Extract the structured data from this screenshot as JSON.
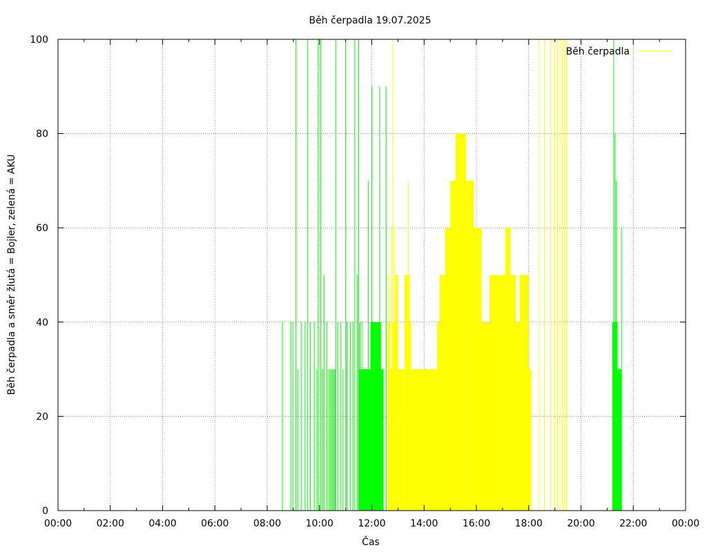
{
  "chart_data": {
    "type": "bar",
    "title": "Běh čerpadla 19.07.2025",
    "xlabel": "Čas",
    "ylabel": "Běh čerpadla a směr žlutá = Bojler, zelená = AKU",
    "x_unit": "hours",
    "xlim": [
      0,
      24
    ],
    "ylim": [
      0,
      100
    ],
    "x_ticks": [
      "00:00",
      "02:00",
      "04:00",
      "06:00",
      "08:00",
      "10:00",
      "12:00",
      "14:00",
      "16:00",
      "18:00",
      "20:00",
      "22:00",
      "00:00"
    ],
    "y_ticks": [
      "0",
      "20",
      "40",
      "60",
      "80",
      "100"
    ],
    "grid": true,
    "legend_position": "top-right",
    "legend": [
      {
        "label": "Běh čerpadla",
        "color": "#ffff00"
      }
    ],
    "colors": {
      "boiler": "#ffff00",
      "aku": "#00ff00"
    },
    "series": [
      {
        "direction": "AKU",
        "color": "#00ff00",
        "spikes": [
          [
            8.58,
            40
          ],
          [
            8.9,
            40
          ],
          [
            8.98,
            40
          ],
          [
            9.1,
            100
          ],
          [
            9.18,
            30
          ],
          [
            9.3,
            40
          ],
          [
            9.45,
            40
          ],
          [
            9.55,
            100
          ],
          [
            9.65,
            40
          ],
          [
            9.8,
            40
          ],
          [
            9.9,
            30
          ],
          [
            9.95,
            100
          ],
          [
            10.05,
            100
          ],
          [
            10.12,
            30
          ],
          [
            10.18,
            50
          ],
          [
            10.28,
            40
          ],
          [
            10.35,
            30
          ],
          [
            10.4,
            30
          ],
          [
            10.45,
            30
          ],
          [
            10.5,
            30
          ],
          [
            10.55,
            30
          ],
          [
            10.6,
            30
          ],
          [
            10.62,
            100
          ],
          [
            10.7,
            40
          ],
          [
            10.82,
            40
          ],
          [
            10.9,
            30
          ],
          [
            11.0,
            100
          ],
          [
            11.05,
            40
          ],
          [
            11.18,
            40
          ],
          [
            11.28,
            40
          ],
          [
            11.35,
            100
          ],
          [
            11.45,
            50
          ],
          [
            11.5,
            100
          ],
          [
            11.55,
            40
          ],
          [
            11.62,
            40
          ],
          [
            11.7,
            30
          ],
          [
            11.75,
            30
          ],
          [
            11.78,
            30
          ],
          [
            11.82,
            30
          ],
          [
            11.85,
            30
          ],
          [
            11.87,
            70
          ],
          [
            11.9,
            30
          ],
          [
            11.95,
            30
          ],
          [
            12.0,
            90
          ],
          [
            12.3,
            90
          ],
          [
            12.55,
            90
          ]
        ],
        "blocks": [
          [
            11.5,
            11.95,
            30
          ],
          [
            11.95,
            12.35,
            40
          ],
          [
            12.35,
            12.45,
            30
          ]
        ]
      },
      {
        "direction": "Bojler",
        "color": "#ffff00",
        "spikes": [
          [
            12.65,
            50
          ],
          [
            12.75,
            60
          ],
          [
            12.8,
            100
          ],
          [
            12.85,
            60
          ],
          [
            13.4,
            70
          ],
          [
            18.4,
            100
          ],
          [
            18.6,
            100
          ],
          [
            18.85,
            100
          ],
          [
            19.0,
            100
          ],
          [
            19.1,
            100
          ],
          [
            19.2,
            100
          ],
          [
            19.3,
            100
          ],
          [
            19.38,
            100
          ],
          [
            19.45,
            100
          ]
        ],
        "blocks": [
          [
            12.6,
            12.7,
            40
          ],
          [
            12.7,
            12.8,
            30
          ],
          [
            12.8,
            12.9,
            40
          ],
          [
            12.9,
            13.0,
            50
          ],
          [
            13.0,
            13.25,
            30
          ],
          [
            13.25,
            13.45,
            50
          ],
          [
            13.45,
            13.5,
            40
          ],
          [
            13.5,
            14.0,
            30
          ],
          [
            14.0,
            14.5,
            30
          ],
          [
            14.5,
            14.6,
            40
          ],
          [
            14.6,
            14.8,
            50
          ],
          [
            14.8,
            15.0,
            60
          ],
          [
            15.0,
            15.2,
            70
          ],
          [
            15.2,
            15.6,
            80
          ],
          [
            15.6,
            15.9,
            70
          ],
          [
            15.9,
            16.2,
            60
          ],
          [
            16.2,
            16.5,
            40
          ],
          [
            16.5,
            16.8,
            50
          ],
          [
            16.8,
            17.0,
            50
          ],
          [
            17.0,
            17.1,
            50
          ],
          [
            17.1,
            17.3,
            60
          ],
          [
            17.3,
            17.5,
            50
          ],
          [
            17.5,
            17.65,
            40
          ],
          [
            17.65,
            18.0,
            50
          ],
          [
            18.0,
            18.1,
            30
          ]
        ]
      },
      {
        "direction": "AKU",
        "color": "#00ff00",
        "spikes": [
          [
            21.25,
            100
          ],
          [
            21.3,
            80
          ],
          [
            21.35,
            70
          ],
          [
            21.45,
            30
          ],
          [
            21.55,
            60
          ]
        ],
        "blocks": [
          [
            21.2,
            21.3,
            40
          ],
          [
            21.3,
            21.4,
            40
          ],
          [
            21.4,
            21.55,
            30
          ]
        ]
      }
    ]
  }
}
